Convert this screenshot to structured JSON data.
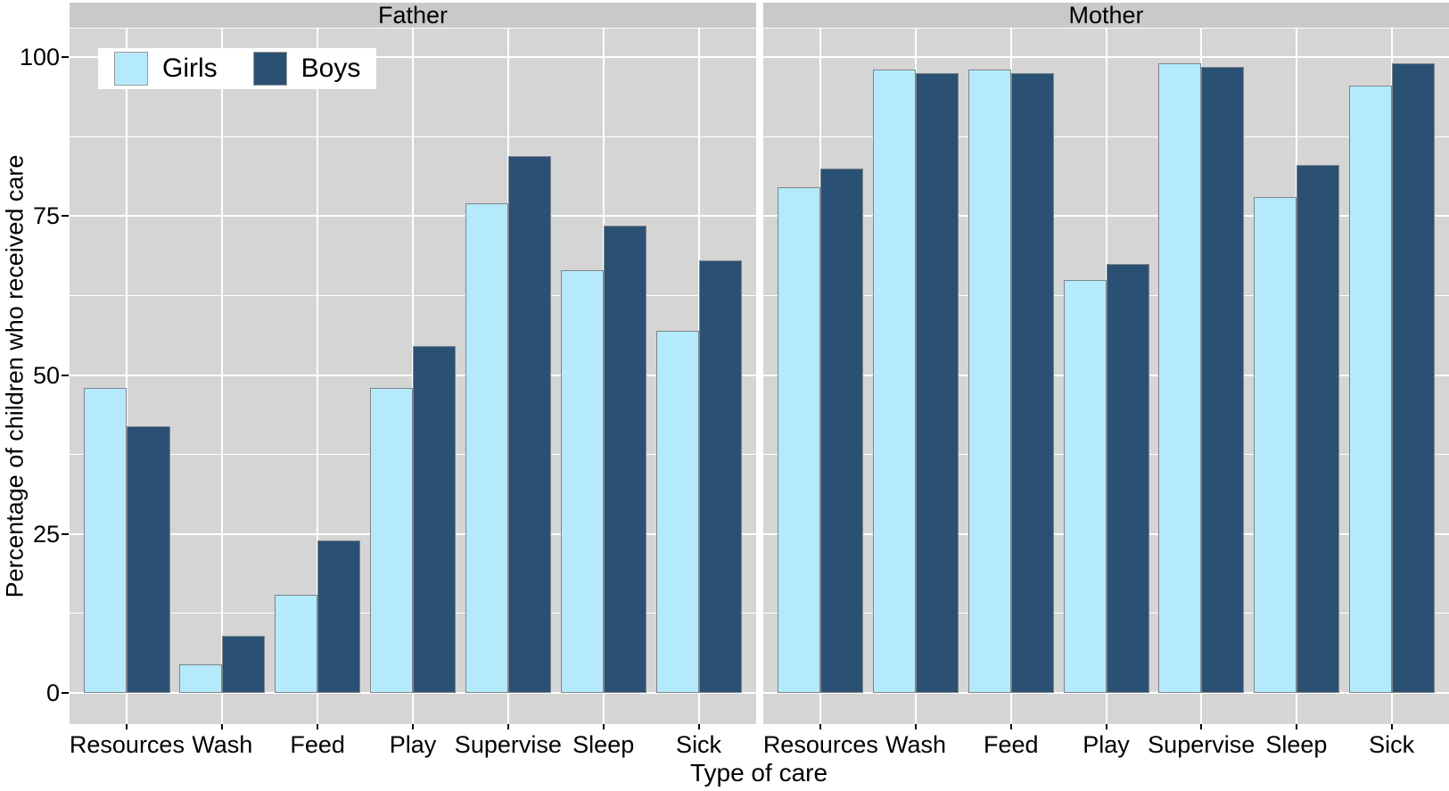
{
  "chart_data": {
    "type": "bar",
    "categories": [
      "Resources",
      "Wash",
      "Feed",
      "Play",
      "Supervise",
      "Sleep",
      "Sick"
    ],
    "facets": [
      {
        "label": "Father",
        "series": [
          {
            "name": "Girls",
            "color": "#B4EAFB",
            "values": [
              48,
              4.5,
              15.5,
              48,
              77,
              66.5,
              57
            ]
          },
          {
            "name": "Boys",
            "color": "#2A5173",
            "values": [
              42,
              9,
              24,
              54.5,
              84.5,
              73.5,
              68
            ]
          }
        ]
      },
      {
        "label": "Mother",
        "series": [
          {
            "name": "Girls",
            "color": "#B4EAFB",
            "values": [
              79.5,
              98,
              98,
              65,
              99,
              78,
              95.5
            ]
          },
          {
            "name": "Boys",
            "color": "#2A5173",
            "values": [
              82.5,
              97.5,
              97.5,
              67.5,
              98.5,
              83,
              99
            ]
          }
        ]
      }
    ],
    "xlabel": "Type of care",
    "ylabel": "Percentage of children who received care",
    "ylim": [
      0,
      100
    ],
    "yticks": [
      0,
      25,
      50,
      75,
      100
    ],
    "yminor": [
      12.5,
      37.5,
      62.5,
      87.5
    ],
    "grid": true,
    "legend": {
      "position": "top-left-inside",
      "items": [
        {
          "label": "Girls",
          "color": "#B4EAFB"
        },
        {
          "label": "Boys",
          "color": "#2A5173"
        }
      ]
    },
    "colors": {
      "panel_background": "#D5D5D5",
      "strip_background": "#C9C9C9",
      "gridline": "#FFFFFF",
      "bar_border": "#7D868C",
      "girls": "#B4EAFB",
      "boys": "#2A5173"
    }
  }
}
